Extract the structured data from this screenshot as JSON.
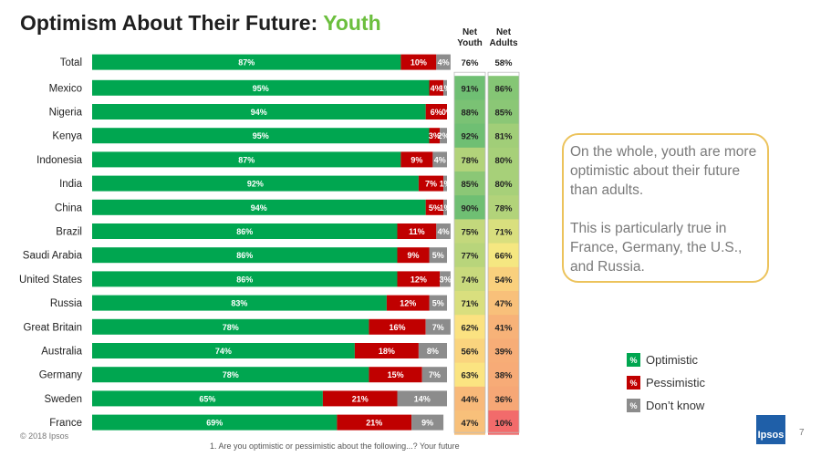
{
  "header": {
    "title_main": "Optimism About Their Future:",
    "title_accent": "Youth"
  },
  "columns": {
    "net_youth": [
      "Net",
      "Youth"
    ],
    "net_adults": [
      "Net",
      "Adults"
    ]
  },
  "chart_data": {
    "type": "bar",
    "stacked": true,
    "orientation": "horizontal",
    "categories": [
      "Total",
      "Mexico",
      "Nigeria",
      "Kenya",
      "Indonesia",
      "India",
      "China",
      "Brazil",
      "Saudi Arabia",
      "United States",
      "Russia",
      "Great Britain",
      "Australia",
      "Germany",
      "Sweden",
      "France"
    ],
    "series": [
      {
        "name": "Optimistic",
        "color": "#00a650",
        "values": [
          87,
          95,
          94,
          95,
          87,
          92,
          94,
          86,
          86,
          86,
          83,
          78,
          74,
          78,
          65,
          69
        ],
        "labels": [
          "87%",
          "95%",
          "94%",
          "95%",
          "87%",
          "92%",
          "94%",
          "86%",
          "86%",
          "86%",
          "83%",
          "78%",
          "74%",
          "78%",
          "65%",
          "69%"
        ]
      },
      {
        "name": "Pessimistic",
        "color": "#c00000",
        "values": [
          10,
          4,
          6,
          3,
          9,
          7,
          5,
          11,
          9,
          12,
          12,
          16,
          18,
          15,
          21,
          21
        ],
        "labels": [
          "10%",
          "4%",
          "6%",
          "3%",
          "9%",
          "7%",
          "5%",
          "11%",
          "9%",
          "12%",
          "12%",
          "16%",
          "18%",
          "15%",
          "21%",
          "21%"
        ]
      },
      {
        "name": "Don’t know",
        "color": "#8c8c8c",
        "values": [
          4,
          1,
          0,
          2,
          4,
          1,
          1,
          4,
          5,
          3,
          5,
          7,
          8,
          7,
          14,
          9
        ],
        "labels": [
          "4%",
          "1%",
          "0%",
          "2%",
          "4%",
          "1%",
          "1%",
          "4%",
          "5%",
          "3%",
          "5%",
          "7%",
          "8%",
          "7%",
          "14%",
          "9%"
        ]
      }
    ],
    "net_youth": [
      "76%",
      "91%",
      "88%",
      "92%",
      "78%",
      "85%",
      "90%",
      "75%",
      "77%",
      "74%",
      "71%",
      "62%",
      "56%",
      "63%",
      "44%",
      "47%"
    ],
    "net_adults": [
      "58%",
      "86%",
      "85%",
      "81%",
      "80%",
      "80%",
      "78%",
      "71%",
      "66%",
      "54%",
      "47%",
      "41%",
      "39%",
      "38%",
      "36%",
      "10%"
    ],
    "net_youth_values": [
      76,
      91,
      88,
      92,
      78,
      85,
      90,
      75,
      77,
      74,
      71,
      62,
      56,
      63,
      44,
      47
    ],
    "net_adults_values": [
      58,
      86,
      85,
      81,
      80,
      80,
      78,
      71,
      66,
      54,
      47,
      41,
      39,
      38,
      36,
      10
    ],
    "scale_colors": {
      "high": "#6fbf73",
      "mid": "#fbe982",
      "low": "#f26b6b"
    },
    "xlim": [
      0,
      100
    ],
    "legend_position": "bottom-right"
  },
  "callout": {
    "p1": "On the whole, youth are more optimistic about their future than adults.",
    "p2": "This is particularly true in France, Germany, the U.S., and Russia."
  },
  "legend": {
    "symbol": "%",
    "items": [
      {
        "label": "Optimistic",
        "color": "#00a650"
      },
      {
        "label": "Pessimistic",
        "color": "#c00000"
      },
      {
        "label": "Don’t know",
        "color": "#8c8c8c"
      }
    ]
  },
  "footer": {
    "copyright": "© 2018 Ipsos",
    "footnote": "1. Are you optimistic or pessimistic about the following...? Your future",
    "logo": "Ipsos",
    "page": "7"
  }
}
